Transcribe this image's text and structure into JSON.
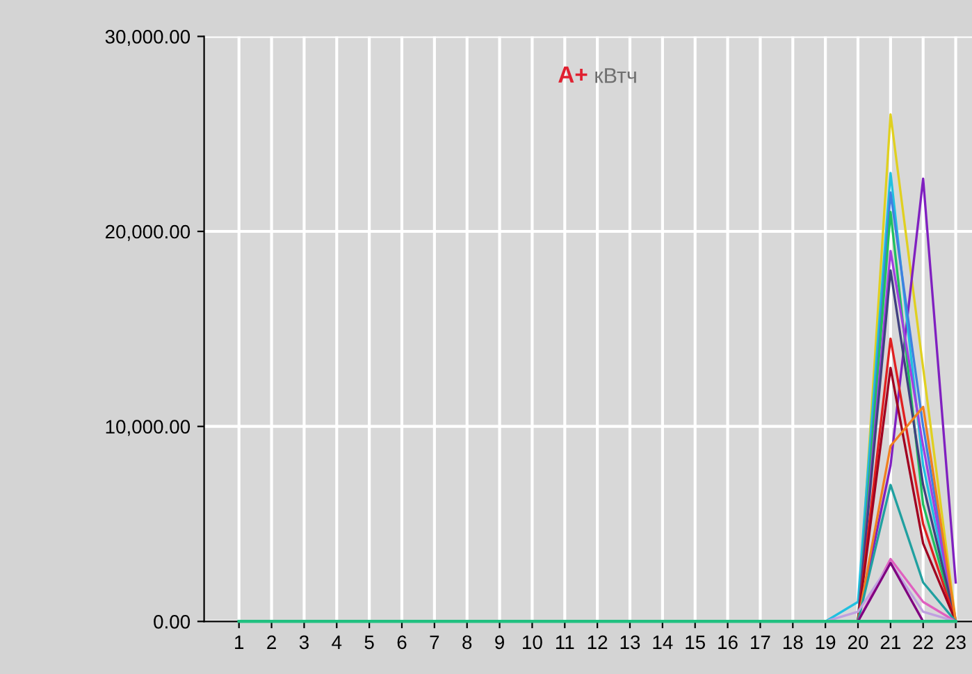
{
  "chart_data": {
    "type": "line",
    "title": "A+ кВтч",
    "categories": [
      "1",
      "2",
      "3",
      "4",
      "5",
      "6",
      "7",
      "8",
      "9",
      "10",
      "11",
      "12",
      "13",
      "14",
      "15",
      "16",
      "17",
      "18",
      "19",
      "20",
      "21",
      "22",
      "23"
    ],
    "ylim": [
      0,
      30000
    ],
    "yticks": [
      {
        "value": 0,
        "label": "0.00"
      },
      {
        "value": 10000,
        "label": "10,000.00"
      },
      {
        "value": 20000,
        "label": "20,000.00"
      },
      {
        "value": 30000,
        "label": "30,000.00"
      }
    ],
    "grid": true,
    "marker": "none",
    "line_style": "solid",
    "series": [
      {
        "color": "#20c080",
        "values": [
          0,
          0,
          0,
          0,
          0,
          0,
          0,
          0,
          0,
          0,
          0,
          0,
          0,
          0,
          0,
          0,
          0,
          0,
          0,
          0,
          0,
          0,
          0
        ]
      },
      {
        "color": "#e0d020",
        "values": [
          null,
          null,
          null,
          null,
          null,
          null,
          null,
          null,
          null,
          null,
          null,
          null,
          null,
          null,
          null,
          null,
          null,
          null,
          null,
          0,
          26000,
          13000,
          0
        ]
      },
      {
        "color": "#8020c0",
        "values": [
          null,
          null,
          null,
          null,
          null,
          null,
          null,
          null,
          null,
          null,
          null,
          null,
          null,
          null,
          null,
          null,
          null,
          null,
          null,
          0,
          8000,
          22700,
          2000
        ]
      },
      {
        "color": "#20c0e0",
        "values": [
          null,
          null,
          null,
          null,
          null,
          null,
          null,
          null,
          null,
          null,
          null,
          null,
          null,
          null,
          null,
          null,
          null,
          null,
          0,
          1000,
          23000,
          8000,
          0
        ]
      },
      {
        "color": "#4080e0",
        "values": [
          null,
          null,
          null,
          null,
          null,
          null,
          null,
          null,
          null,
          null,
          null,
          null,
          null,
          null,
          null,
          null,
          null,
          null,
          null,
          0,
          22000,
          10000,
          0
        ]
      },
      {
        "color": "#20c060",
        "values": [
          null,
          null,
          null,
          null,
          null,
          null,
          null,
          null,
          null,
          null,
          null,
          null,
          null,
          null,
          null,
          null,
          null,
          null,
          null,
          0,
          21000,
          6000,
          0
        ]
      },
      {
        "color": "#a040e0",
        "values": [
          null,
          null,
          null,
          null,
          null,
          null,
          null,
          null,
          null,
          null,
          null,
          null,
          null,
          null,
          null,
          null,
          null,
          null,
          null,
          0,
          19000,
          9000,
          0
        ]
      },
      {
        "color": "#404080",
        "values": [
          null,
          null,
          null,
          null,
          null,
          null,
          null,
          null,
          null,
          null,
          null,
          null,
          null,
          null,
          null,
          null,
          null,
          null,
          null,
          0,
          18000,
          7000,
          0
        ]
      },
      {
        "color": "#e02020",
        "values": [
          null,
          null,
          null,
          null,
          null,
          null,
          null,
          null,
          null,
          null,
          null,
          null,
          null,
          null,
          null,
          null,
          null,
          null,
          null,
          0,
          14500,
          5000,
          0
        ]
      },
      {
        "color": "#a00020",
        "values": [
          null,
          null,
          null,
          null,
          null,
          null,
          null,
          null,
          null,
          null,
          null,
          null,
          null,
          null,
          null,
          null,
          null,
          null,
          null,
          0,
          13000,
          4000,
          0
        ]
      },
      {
        "color": "#f08020",
        "values": [
          null,
          null,
          null,
          null,
          null,
          null,
          null,
          null,
          null,
          null,
          null,
          null,
          null,
          null,
          null,
          null,
          null,
          null,
          null,
          0,
          9000,
          11000,
          0
        ]
      },
      {
        "color": "#20a0a0",
        "values": [
          null,
          null,
          null,
          null,
          null,
          null,
          null,
          null,
          null,
          null,
          null,
          null,
          null,
          null,
          null,
          null,
          null,
          null,
          null,
          0,
          7000,
          2000,
          0
        ]
      },
      {
        "color": "#e060c0",
        "values": [
          null,
          null,
          null,
          null,
          null,
          null,
          null,
          null,
          null,
          null,
          null,
          null,
          null,
          null,
          null,
          null,
          null,
          null,
          null,
          0,
          3200,
          1000,
          0
        ]
      },
      {
        "color": "#c0a0e0",
        "values": [
          null,
          null,
          null,
          null,
          null,
          null,
          null,
          null,
          null,
          null,
          null,
          null,
          null,
          null,
          null,
          null,
          null,
          null,
          0,
          500,
          3000,
          500,
          0
        ]
      },
      {
        "color": "#800080",
        "values": [
          null,
          null,
          null,
          null,
          null,
          null,
          null,
          null,
          null,
          null,
          null,
          null,
          null,
          null,
          null,
          null,
          null,
          null,
          null,
          0,
          3000,
          0,
          0
        ]
      }
    ]
  }
}
